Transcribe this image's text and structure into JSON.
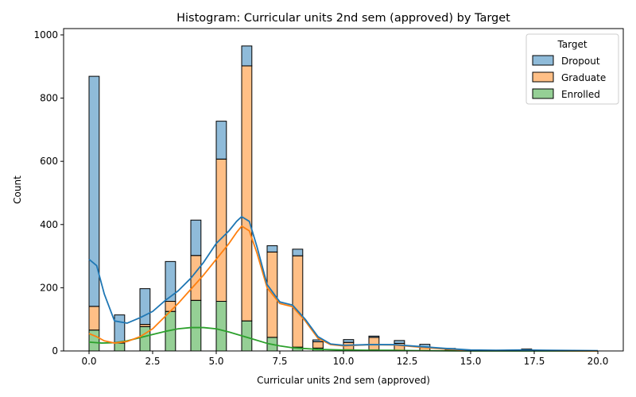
{
  "chart_data": {
    "type": "bar",
    "stacked": true,
    "title": "Histogram: Curricular units 2nd sem (approved) by Target",
    "xlabel": "Curricular units 2nd sem (approved)",
    "ylabel": "Count",
    "xlim": [
      -1.0,
      21.0
    ],
    "ylim": [
      0,
      1020
    ],
    "xticks": [
      0.0,
      2.5,
      5.0,
      7.5,
      10.0,
      12.5,
      15.0,
      17.5,
      20.0
    ],
    "xtick_labels": [
      "0.0",
      "2.5",
      "5.0",
      "7.5",
      "10.0",
      "12.5",
      "15.0",
      "17.5",
      "20.0"
    ],
    "yticks": [
      0,
      200,
      400,
      600,
      800,
      1000
    ],
    "ytick_labels": [
      "0",
      "200",
      "400",
      "600",
      "800",
      "1000"
    ],
    "grid": false,
    "bin_width": 0.4,
    "bin_starts": [
      0.0,
      1.0,
      2.0,
      3.0,
      4.0,
      5.0,
      6.0,
      7.0,
      8.0,
      8.8,
      10.0,
      11.0,
      12.0,
      13.0,
      14.0,
      17.0
    ],
    "series": [
      {
        "name": "Enrolled",
        "color": "#2ca02c",
        "values": [
          66,
          25,
          77,
          125,
          160,
          157,
          95,
          43,
          12,
          9,
          4,
          3,
          2,
          1,
          0,
          0
        ]
      },
      {
        "name": "Graduate",
        "color": "#ff7f0e",
        "values": [
          75,
          0,
          7,
          32,
          142,
          450,
          807,
          270,
          289,
          20,
          23,
          40,
          22,
          10,
          2,
          2
        ]
      },
      {
        "name": "Dropout",
        "color": "#1f77b4",
        "values": [
          728,
          89,
          113,
          126,
          112,
          120,
          63,
          20,
          21,
          6,
          9,
          4,
          9,
          10,
          6,
          4
        ]
      }
    ],
    "kde": [
      {
        "name": "Dropout",
        "color": "#1f77b4",
        "x": [
          0.0,
          0.3,
          0.6,
          1.0,
          1.5,
          2.0,
          2.5,
          3.0,
          3.5,
          4.0,
          4.5,
          5.0,
          5.5,
          5.8,
          6.0,
          6.3,
          6.6,
          7.0,
          7.5,
          8.0,
          8.5,
          9.0,
          9.5,
          10.0,
          11.0,
          12.0,
          13.0,
          14.0,
          15.0,
          16.0,
          17.0,
          18.0,
          20.0
        ],
        "y": [
          290,
          270,
          180,
          95,
          88,
          105,
          125,
          160,
          190,
          230,
          280,
          340,
          380,
          410,
          425,
          410,
          330,
          210,
          155,
          145,
          100,
          45,
          22,
          18,
          20,
          20,
          14,
          8,
          3,
          2,
          3,
          2,
          1
        ]
      },
      {
        "name": "Graduate",
        "color": "#ff7f0e",
        "x": [
          0.0,
          0.3,
          0.6,
          1.0,
          1.5,
          2.0,
          2.5,
          3.0,
          3.5,
          4.0,
          4.5,
          5.0,
          5.5,
          5.8,
          6.0,
          6.3,
          6.6,
          7.0,
          7.5,
          8.0,
          8.5,
          9.0,
          9.5,
          10.0,
          11.0,
          12.0,
          13.0,
          14.0,
          15.0,
          16.0,
          17.0,
          18.0,
          20.0
        ],
        "y": [
          55,
          45,
          32,
          25,
          30,
          45,
          70,
          110,
          150,
          195,
          240,
          290,
          340,
          375,
          395,
          380,
          310,
          200,
          150,
          140,
          95,
          40,
          20,
          16,
          20,
          19,
          12,
          6,
          2,
          1,
          2,
          1,
          0
        ]
      },
      {
        "name": "Enrolled",
        "color": "#2ca02c",
        "x": [
          0.0,
          0.5,
          1.0,
          1.5,
          2.0,
          2.5,
          3.0,
          3.5,
          4.0,
          4.5,
          5.0,
          5.5,
          6.0,
          6.5,
          7.0,
          7.5,
          8.0,
          9.0,
          10.0,
          11.0,
          12.0,
          13.0,
          15.0,
          20.0
        ],
        "y": [
          28,
          25,
          26,
          32,
          42,
          52,
          62,
          70,
          74,
          74,
          70,
          60,
          48,
          36,
          24,
          16,
          10,
          5,
          3,
          2,
          2,
          1,
          0,
          0
        ]
      }
    ],
    "legend": {
      "title": "Target",
      "placement": "top-right",
      "entries": [
        {
          "label": "Dropout",
          "color": "#1f77b4"
        },
        {
          "label": "Graduate",
          "color": "#ff7f0e"
        },
        {
          "label": "Enrolled",
          "color": "#2ca02c"
        }
      ]
    }
  }
}
